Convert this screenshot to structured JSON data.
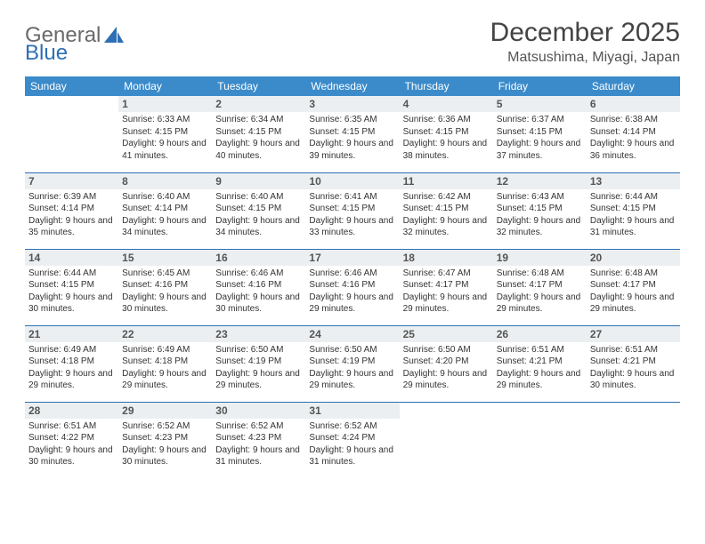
{
  "logo": {
    "word1": "General",
    "word2": "Blue"
  },
  "title": "December 2025",
  "location": "Matsushima, Miyagi, Japan",
  "colors": {
    "header_bg": "#3b8bca",
    "header_text": "#ffffff",
    "border": "#2d6fb5",
    "daynum_bg": "#eceff1",
    "logo_gray": "#6a6a6a",
    "logo_blue": "#2d6fb5"
  },
  "weekdays": [
    "Sunday",
    "Monday",
    "Tuesday",
    "Wednesday",
    "Thursday",
    "Friday",
    "Saturday"
  ],
  "weeks": [
    [
      null,
      {
        "n": "1",
        "sr": "6:33 AM",
        "ss": "4:15 PM",
        "dl": "9 hours and 41 minutes."
      },
      {
        "n": "2",
        "sr": "6:34 AM",
        "ss": "4:15 PM",
        "dl": "9 hours and 40 minutes."
      },
      {
        "n": "3",
        "sr": "6:35 AM",
        "ss": "4:15 PM",
        "dl": "9 hours and 39 minutes."
      },
      {
        "n": "4",
        "sr": "6:36 AM",
        "ss": "4:15 PM",
        "dl": "9 hours and 38 minutes."
      },
      {
        "n": "5",
        "sr": "6:37 AM",
        "ss": "4:15 PM",
        "dl": "9 hours and 37 minutes."
      },
      {
        "n": "6",
        "sr": "6:38 AM",
        "ss": "4:14 PM",
        "dl": "9 hours and 36 minutes."
      }
    ],
    [
      {
        "n": "7",
        "sr": "6:39 AM",
        "ss": "4:14 PM",
        "dl": "9 hours and 35 minutes."
      },
      {
        "n": "8",
        "sr": "6:40 AM",
        "ss": "4:14 PM",
        "dl": "9 hours and 34 minutes."
      },
      {
        "n": "9",
        "sr": "6:40 AM",
        "ss": "4:15 PM",
        "dl": "9 hours and 34 minutes."
      },
      {
        "n": "10",
        "sr": "6:41 AM",
        "ss": "4:15 PM",
        "dl": "9 hours and 33 minutes."
      },
      {
        "n": "11",
        "sr": "6:42 AM",
        "ss": "4:15 PM",
        "dl": "9 hours and 32 minutes."
      },
      {
        "n": "12",
        "sr": "6:43 AM",
        "ss": "4:15 PM",
        "dl": "9 hours and 32 minutes."
      },
      {
        "n": "13",
        "sr": "6:44 AM",
        "ss": "4:15 PM",
        "dl": "9 hours and 31 minutes."
      }
    ],
    [
      {
        "n": "14",
        "sr": "6:44 AM",
        "ss": "4:15 PM",
        "dl": "9 hours and 30 minutes."
      },
      {
        "n": "15",
        "sr": "6:45 AM",
        "ss": "4:16 PM",
        "dl": "9 hours and 30 minutes."
      },
      {
        "n": "16",
        "sr": "6:46 AM",
        "ss": "4:16 PM",
        "dl": "9 hours and 30 minutes."
      },
      {
        "n": "17",
        "sr": "6:46 AM",
        "ss": "4:16 PM",
        "dl": "9 hours and 29 minutes."
      },
      {
        "n": "18",
        "sr": "6:47 AM",
        "ss": "4:17 PM",
        "dl": "9 hours and 29 minutes."
      },
      {
        "n": "19",
        "sr": "6:48 AM",
        "ss": "4:17 PM",
        "dl": "9 hours and 29 minutes."
      },
      {
        "n": "20",
        "sr": "6:48 AM",
        "ss": "4:17 PM",
        "dl": "9 hours and 29 minutes."
      }
    ],
    [
      {
        "n": "21",
        "sr": "6:49 AM",
        "ss": "4:18 PM",
        "dl": "9 hours and 29 minutes."
      },
      {
        "n": "22",
        "sr": "6:49 AM",
        "ss": "4:18 PM",
        "dl": "9 hours and 29 minutes."
      },
      {
        "n": "23",
        "sr": "6:50 AM",
        "ss": "4:19 PM",
        "dl": "9 hours and 29 minutes."
      },
      {
        "n": "24",
        "sr": "6:50 AM",
        "ss": "4:19 PM",
        "dl": "9 hours and 29 minutes."
      },
      {
        "n": "25",
        "sr": "6:50 AM",
        "ss": "4:20 PM",
        "dl": "9 hours and 29 minutes."
      },
      {
        "n": "26",
        "sr": "6:51 AM",
        "ss": "4:21 PM",
        "dl": "9 hours and 29 minutes."
      },
      {
        "n": "27",
        "sr": "6:51 AM",
        "ss": "4:21 PM",
        "dl": "9 hours and 30 minutes."
      }
    ],
    [
      {
        "n": "28",
        "sr": "6:51 AM",
        "ss": "4:22 PM",
        "dl": "9 hours and 30 minutes."
      },
      {
        "n": "29",
        "sr": "6:52 AM",
        "ss": "4:23 PM",
        "dl": "9 hours and 30 minutes."
      },
      {
        "n": "30",
        "sr": "6:52 AM",
        "ss": "4:23 PM",
        "dl": "9 hours and 31 minutes."
      },
      {
        "n": "31",
        "sr": "6:52 AM",
        "ss": "4:24 PM",
        "dl": "9 hours and 31 minutes."
      },
      null,
      null,
      null
    ]
  ],
  "labels": {
    "sunrise": "Sunrise:",
    "sunset": "Sunset:",
    "daylight": "Daylight:"
  }
}
